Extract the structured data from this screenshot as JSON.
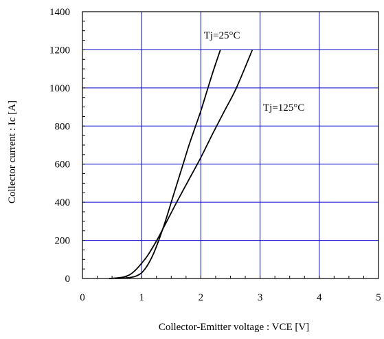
{
  "chart_data": {
    "type": "line",
    "title": "",
    "xlabel": "Collector-Emitter voltage : VCE [V]",
    "ylabel": "Collector current : Ic [A]",
    "xlim": [
      0,
      5
    ],
    "ylim": [
      0,
      1400
    ],
    "x_ticks": [
      "0",
      "1",
      "2",
      "3",
      "4",
      "5"
    ],
    "y_ticks": [
      "0",
      "200",
      "400",
      "600",
      "800",
      "1000",
      "1200",
      "1400"
    ],
    "grid": true,
    "grid_color": "#0000cc",
    "line_color": "#000000",
    "series": [
      {
        "name": "Tj=25°C",
        "x": [
          0.55,
          0.7,
          0.8,
          0.9,
          1.0,
          1.1,
          1.2,
          1.3,
          1.4,
          1.5,
          1.6,
          1.7,
          1.8,
          1.9,
          2.0,
          2.1,
          2.2,
          2.33
        ],
        "y": [
          0,
          2,
          5,
          12,
          30,
          70,
          130,
          210,
          300,
          400,
          500,
          600,
          700,
          790,
          880,
          980,
          1080,
          1200
        ]
      },
      {
        "name": "Tj=125°C",
        "x": [
          0.45,
          0.6,
          0.7,
          0.8,
          0.9,
          1.0,
          1.1,
          1.2,
          1.3,
          1.4,
          1.5,
          1.6,
          1.8,
          2.0,
          2.2,
          2.4,
          2.6,
          2.87
        ],
        "y": [
          0,
          3,
          8,
          20,
          45,
          80,
          120,
          170,
          225,
          285,
          345,
          405,
          520,
          635,
          760,
          880,
          1000,
          1200
        ]
      }
    ],
    "annotations": [
      {
        "text": "Tj=25°C",
        "x": 2.05,
        "y": 1260
      },
      {
        "text": "Tj=125°C",
        "x": 3.05,
        "y": 880
      }
    ]
  }
}
